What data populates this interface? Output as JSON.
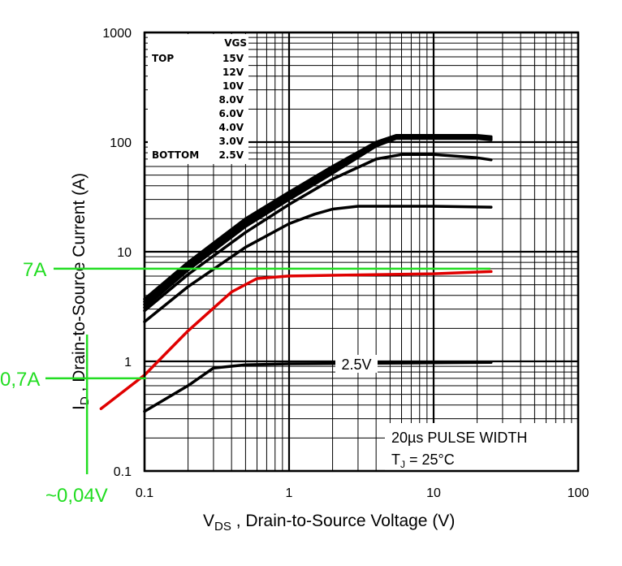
{
  "chart_data": {
    "type": "line",
    "xscale": "log",
    "yscale": "log",
    "xlim": [
      0.1,
      100
    ],
    "ylim": [
      0.1,
      1000
    ],
    "grid": true,
    "xlabel_main": "V",
    "xlabel_sub": "DS",
    "xlabel_rest": " , Drain-to-Source Voltage (V)",
    "ylabel_main": "I",
    "ylabel_sub": "D",
    "ylabel_rest": " , Drain-to-Source Current (A)",
    "xticks": [
      {
        "v": 0.1,
        "label": "0.1"
      },
      {
        "v": 1,
        "label": "1"
      },
      {
        "v": 10,
        "label": "10"
      },
      {
        "v": 100,
        "label": "100"
      }
    ],
    "yticks": [
      {
        "v": 0.1,
        "label": "0.1"
      },
      {
        "v": 1,
        "label": "1"
      },
      {
        "v": 10,
        "label": "10"
      },
      {
        "v": 100,
        "label": "100"
      },
      {
        "v": 1000,
        "label": "1000"
      }
    ],
    "legend": {
      "header": "VGS",
      "top_label": "TOP",
      "bottom_label": "BOTTOM",
      "entries": [
        "15V",
        "12V",
        "10V",
        "8.0V",
        "6.0V",
        "4.0V",
        "3.0V",
        "2.5V"
      ]
    },
    "notes": {
      "line1": "20µs PULSE WIDTH",
      "line2_main": "T",
      "line2_sub": "J",
      "line2_rest": " = 25°C"
    },
    "curve_label": "2.5V",
    "series": [
      {
        "name": "15V",
        "x": [
          0.1,
          0.2,
          0.5,
          1,
          2,
          4,
          5.5,
          10,
          20,
          25
        ],
        "y": [
          3.7,
          8,
          20,
          35,
          60,
          100,
          115,
          115,
          115,
          112
        ],
        "color": "#000000"
      },
      {
        "name": "12V",
        "x": [
          0.1,
          0.2,
          0.5,
          1,
          2,
          4,
          5.5,
          10,
          20,
          25
        ],
        "y": [
          3.5,
          7.6,
          19,
          33,
          58,
          98,
          113,
          113,
          113,
          110
        ],
        "color": "#000000"
      },
      {
        "name": "10V",
        "x": [
          0.1,
          0.2,
          0.5,
          1,
          2,
          4,
          5.5,
          10,
          20,
          25
        ],
        "y": [
          3.3,
          7.2,
          18,
          32,
          55,
          95,
          110,
          110,
          110,
          107
        ],
        "color": "#000000"
      },
      {
        "name": "8.0V",
        "x": [
          0.1,
          0.2,
          0.5,
          1,
          2,
          4,
          5.5,
          10,
          20,
          25
        ],
        "y": [
          3.1,
          6.8,
          17,
          30,
          52,
          92,
          108,
          108,
          108,
          105
        ],
        "color": "#000000"
      },
      {
        "name": "6.0V",
        "x": [
          0.1,
          0.2,
          0.5,
          1,
          2,
          4,
          6,
          10,
          20,
          25
        ],
        "y": [
          2.9,
          6.2,
          15,
          27,
          46,
          70,
          77,
          77,
          72,
          69
        ],
        "color": "#000000"
      },
      {
        "name": "4.0V",
        "x": [
          0.1,
          0.2,
          0.5,
          1,
          1.5,
          2,
          3,
          10,
          25
        ],
        "y": [
          2.3,
          4.8,
          11,
          18,
          22,
          24.5,
          26,
          26,
          25.5
        ],
        "color": "#000000"
      },
      {
        "name": "3.0V",
        "x": [
          0.05,
          0.1,
          0.2,
          0.4,
          0.6,
          1,
          2,
          10,
          25
        ],
        "y": [
          0.37,
          0.75,
          1.9,
          4.3,
          5.7,
          6.0,
          6.1,
          6.3,
          6.6
        ],
        "color": "#e00000"
      },
      {
        "name": "2.5V",
        "x": [
          0.1,
          0.2,
          0.3,
          0.5,
          1,
          10,
          25
        ],
        "y": [
          0.35,
          0.6,
          0.87,
          0.93,
          0.95,
          0.97,
          0.98
        ],
        "color": "#000000"
      }
    ],
    "annotations": {
      "color": "#22dd22",
      "h7_label": "7A",
      "h7_value": 7,
      "h07_label": "0,7A",
      "h07_value": 0.7,
      "v_label": "~0,04V",
      "v_value": 0.04
    }
  }
}
